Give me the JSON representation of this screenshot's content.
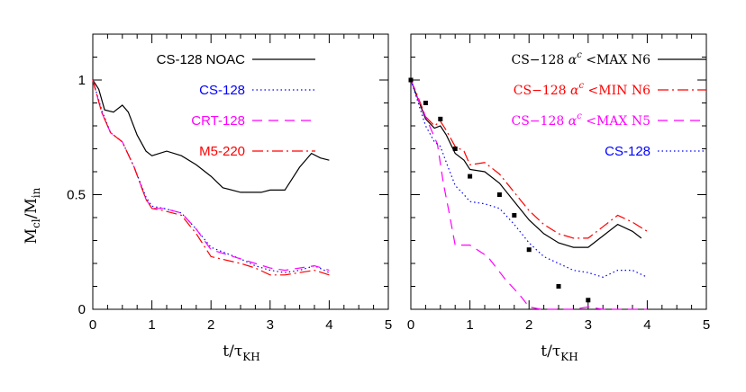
{
  "figure": {
    "ylabel_main": "M",
    "ylabel_sub1": "cl",
    "ylabel_sep": "/M",
    "ylabel_sub2": "in",
    "xlabel_main": "t/τ",
    "xlabel_sub": "KH"
  },
  "chart_data": [
    {
      "type": "line",
      "xlim": [
        0,
        5
      ],
      "ylim": [
        0,
        1.2
      ],
      "x_ticks": [
        "0",
        "1",
        "2",
        "3",
        "4",
        "5"
      ],
      "y_ticks": [
        "0",
        "0.5",
        "1"
      ],
      "x_tick_values": [
        0,
        1,
        2,
        3,
        4,
        5
      ],
      "y_tick_values": [
        0,
        0.5,
        1
      ],
      "legend_placement": "top-right",
      "series": [
        {
          "name": "CS-128 NOAC",
          "color": "#000000",
          "dash": "solid",
          "x": [
            0,
            0.1,
            0.2,
            0.35,
            0.5,
            0.6,
            0.75,
            0.9,
            1.0,
            1.25,
            1.5,
            1.75,
            2.0,
            2.2,
            2.5,
            2.7,
            2.85,
            3.0,
            3.1,
            3.25,
            3.5,
            3.7,
            3.85,
            4.0
          ],
          "y": [
            1.0,
            0.96,
            0.87,
            0.86,
            0.89,
            0.86,
            0.76,
            0.69,
            0.67,
            0.69,
            0.67,
            0.63,
            0.58,
            0.53,
            0.51,
            0.51,
            0.51,
            0.52,
            0.52,
            0.52,
            0.62,
            0.68,
            0.66,
            0.65
          ]
        },
        {
          "name": "CS-128",
          "color": "#0000ff",
          "dash": "dotted",
          "x": [
            0,
            0.15,
            0.3,
            0.5,
            0.7,
            0.9,
            1.0,
            1.2,
            1.5,
            1.75,
            2.0,
            2.5,
            2.75,
            3.0,
            3.25,
            3.5,
            3.75,
            4.0
          ],
          "y": [
            1.0,
            0.87,
            0.77,
            0.73,
            0.62,
            0.49,
            0.45,
            0.44,
            0.42,
            0.35,
            0.27,
            0.22,
            0.19,
            0.17,
            0.16,
            0.17,
            0.19,
            0.16
          ]
        },
        {
          "name": "CRT-128",
          "color": "#ff00ff",
          "dash": "dashed",
          "x": [
            0,
            0.15,
            0.3,
            0.5,
            0.7,
            0.9,
            1.0,
            1.2,
            1.5,
            1.75,
            2.0,
            2.5,
            2.75,
            3.0,
            3.25,
            3.5,
            3.75,
            4.0
          ],
          "y": [
            1.0,
            0.86,
            0.77,
            0.73,
            0.62,
            0.48,
            0.44,
            0.44,
            0.42,
            0.35,
            0.26,
            0.22,
            0.2,
            0.18,
            0.17,
            0.18,
            0.19,
            0.17
          ]
        },
        {
          "name": "M5-220",
          "color": "#ff0000",
          "dash": "dashdot",
          "x": [
            0,
            0.15,
            0.3,
            0.5,
            0.7,
            0.9,
            1.0,
            1.2,
            1.5,
            1.75,
            2.0,
            2.5,
            2.75,
            3.0,
            3.25,
            3.5,
            3.75,
            4.0
          ],
          "y": [
            1.0,
            0.86,
            0.77,
            0.73,
            0.62,
            0.48,
            0.44,
            0.43,
            0.41,
            0.33,
            0.23,
            0.2,
            0.18,
            0.15,
            0.15,
            0.16,
            0.17,
            0.15
          ]
        }
      ]
    },
    {
      "type": "line",
      "xlim": [
        0,
        5
      ],
      "ylim": [
        0,
        1.2
      ],
      "x_ticks": [
        "0",
        "1",
        "2",
        "3",
        "4",
        "5"
      ],
      "y_ticks": [
        "0",
        "0.5",
        "1"
      ],
      "x_tick_values": [
        0,
        1,
        2,
        3,
        4,
        5
      ],
      "y_tick_values": [
        0,
        0.5,
        1
      ],
      "legend_placement": "top-right",
      "series": [
        {
          "name": "CS−128 α^c <MAX N6",
          "label_pre": "CS−128 ",
          "label_alpha": "α",
          "label_sup": "c",
          "label_post": " <MAX N6",
          "color": "#000000",
          "dash": "solid",
          "x": [
            0,
            0.1,
            0.25,
            0.4,
            0.5,
            0.6,
            0.75,
            0.9,
            1.0,
            1.25,
            1.5,
            1.75,
            2.0,
            2.25,
            2.5,
            2.75,
            3.0,
            3.25,
            3.5,
            3.75,
            3.9
          ],
          "y": [
            1.0,
            0.93,
            0.83,
            0.79,
            0.8,
            0.76,
            0.68,
            0.65,
            0.61,
            0.6,
            0.55,
            0.47,
            0.39,
            0.33,
            0.29,
            0.27,
            0.27,
            0.32,
            0.37,
            0.34,
            0.31
          ]
        },
        {
          "name": "CS−128 α^c <MIN N6",
          "label_pre": "CS−128 ",
          "label_alpha": "α",
          "label_sup": "c",
          "label_post": " <MIN N6",
          "color": "#ff0000",
          "dash": "dashdot",
          "x": [
            0,
            0.1,
            0.25,
            0.4,
            0.5,
            0.6,
            0.75,
            0.9,
            1.0,
            1.25,
            1.5,
            1.75,
            2.0,
            2.25,
            2.5,
            2.75,
            3.0,
            3.25,
            3.5,
            3.75,
            4.0
          ],
          "y": [
            1.0,
            0.94,
            0.84,
            0.8,
            0.82,
            0.78,
            0.71,
            0.69,
            0.63,
            0.64,
            0.59,
            0.51,
            0.43,
            0.37,
            0.33,
            0.31,
            0.31,
            0.36,
            0.41,
            0.38,
            0.34
          ]
        },
        {
          "name": "CS−128 α^c <MAX N5",
          "label_pre": "CS−128 ",
          "label_alpha": "α",
          "label_sup": "c",
          "label_post": " <MAX N5",
          "color": "#ff00ff",
          "dash": "dashed",
          "x": [
            0,
            0.15,
            0.3,
            0.45,
            0.55,
            0.65,
            0.75,
            1.0,
            1.3,
            1.6,
            1.85,
            2.0,
            2.2,
            2.5,
            2.75,
            3.0,
            3.25,
            3.5,
            3.75,
            4.0
          ],
          "y": [
            1.0,
            0.9,
            0.81,
            0.72,
            0.55,
            0.42,
            0.28,
            0.28,
            0.23,
            0.13,
            0.06,
            0.01,
            0.0,
            0.0,
            0.0,
            0.01,
            0.0,
            0.0,
            0.0,
            0.0
          ]
        },
        {
          "name": "CS-128",
          "label_pre": "CS-128",
          "label_alpha": "",
          "label_sup": "",
          "label_post": "",
          "color": "#0000ff",
          "dash": "dotted",
          "x": [
            0,
            0.1,
            0.25,
            0.4,
            0.5,
            0.6,
            0.75,
            0.9,
            1.0,
            1.25,
            1.5,
            1.75,
            2.0,
            2.25,
            2.5,
            2.75,
            3.0,
            3.25,
            3.5,
            3.75,
            4.0
          ],
          "y": [
            1.0,
            0.92,
            0.8,
            0.73,
            0.71,
            0.64,
            0.54,
            0.5,
            0.47,
            0.46,
            0.44,
            0.37,
            0.29,
            0.23,
            0.2,
            0.17,
            0.16,
            0.14,
            0.17,
            0.17,
            0.14
          ]
        },
        {
          "name": "points",
          "color": "#000000",
          "marker": "square",
          "x": [
            0,
            0.25,
            0.5,
            0.75,
            1.0,
            1.5,
            1.75,
            2.0,
            2.5,
            3.0
          ],
          "y": [
            1.0,
            0.9,
            0.83,
            0.7,
            0.58,
            0.5,
            0.41,
            0.26,
            0.1,
            0.04
          ]
        }
      ]
    }
  ]
}
